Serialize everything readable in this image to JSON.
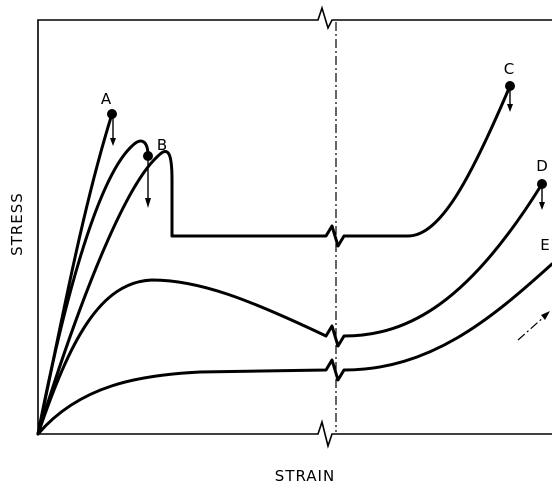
{
  "axes": {
    "x_label": "STRAIN",
    "y_label": "STRESS"
  },
  "curves": [
    {
      "label": "A",
      "fracture": true
    },
    {
      "label": "B",
      "fracture": true
    },
    {
      "label": "C",
      "fracture": true
    },
    {
      "label": "D",
      "fracture": true
    },
    {
      "label": "E",
      "fracture": false
    }
  ],
  "colors": {
    "ink": "#000000",
    "background": "#ffffff"
  }
}
